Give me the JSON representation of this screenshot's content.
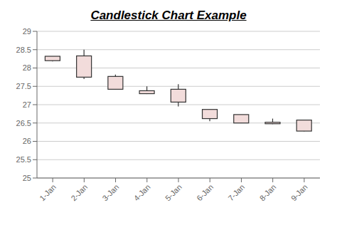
{
  "chart_data": {
    "type": "candlestick",
    "title": "Candlestick Chart Example",
    "categories": [
      "1-Jan",
      "2-Jan",
      "3-Jan",
      "4-Jan",
      "5-Jan",
      "6-Jan",
      "7-Jan",
      "8-Jan",
      "9-Jan"
    ],
    "values": [
      {
        "open": 28.2,
        "close": 28.32,
        "high": 28.32,
        "low": 28.18
      },
      {
        "open": 27.75,
        "close": 28.33,
        "high": 28.5,
        "low": 27.7
      },
      {
        "open": 27.42,
        "close": 27.77,
        "high": 27.82,
        "low": 27.42
      },
      {
        "open": 27.3,
        "close": 27.38,
        "high": 27.5,
        "low": 27.29
      },
      {
        "open": 27.07,
        "close": 27.42,
        "high": 27.56,
        "low": 26.95
      },
      {
        "open": 26.62,
        "close": 26.87,
        "high": 26.87,
        "low": 26.55
      },
      {
        "open": 26.5,
        "close": 26.73,
        "high": 26.73,
        "low": 26.5
      },
      {
        "open": 26.48,
        "close": 26.52,
        "high": 26.62,
        "low": 26.47
      },
      {
        "open": 26.28,
        "close": 26.58,
        "high": 26.58,
        "low": 26.27
      }
    ],
    "color": "#f2dcdb",
    "ylim": [
      25,
      29
    ],
    "yticks": [
      25,
      25.5,
      26,
      26.5,
      27,
      27.5,
      28,
      28.5,
      29
    ],
    "grid": true
  }
}
